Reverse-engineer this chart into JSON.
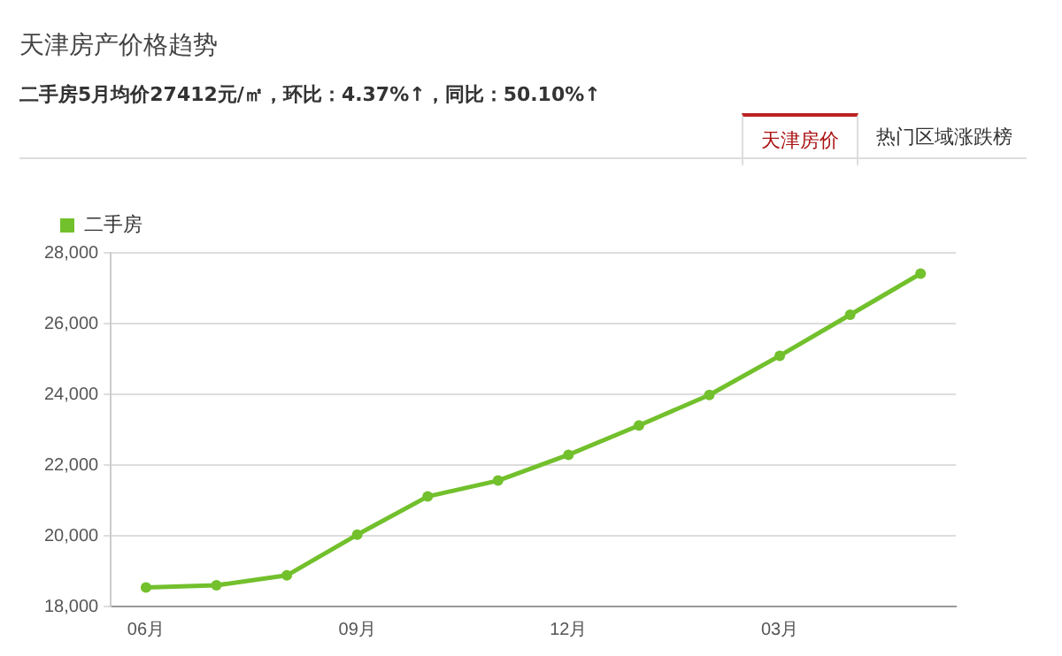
{
  "chart_data": {
    "type": "line",
    "title": "天津房产价格趋势",
    "subtitle": "二手房5月均价27412元/㎡，环比：4.37%↑，同比：50.10%↑",
    "annotations": [
      "天津房价",
      "热门区域涨跌榜"
    ],
    "categories": [
      "06月",
      null,
      null,
      "09月",
      null,
      null,
      "12月",
      null,
      null,
      "03月",
      null,
      null
    ],
    "series": [
      {
        "name": "二手房",
        "color": "#72c02c",
        "values": [
          18540,
          18600,
          18880,
          20030,
          21110,
          21560,
          22290,
          23120,
          23980,
          25090,
          26250,
          27412
        ]
      }
    ],
    "ylim": [
      18000,
      28000
    ],
    "yticks": [
      {
        "value": 18000,
        "label": "18,000"
      },
      {
        "value": 20000,
        "label": "20,000"
      },
      {
        "value": 22000,
        "label": "22,000"
      },
      {
        "value": 24000,
        "label": "24,000"
      },
      {
        "value": 26000,
        "label": "26,000"
      },
      {
        "value": 28000,
        "label": "28,000"
      }
    ],
    "grid": "y",
    "legend": "top left",
    "marker": "circle",
    "line_style": "solid"
  }
}
